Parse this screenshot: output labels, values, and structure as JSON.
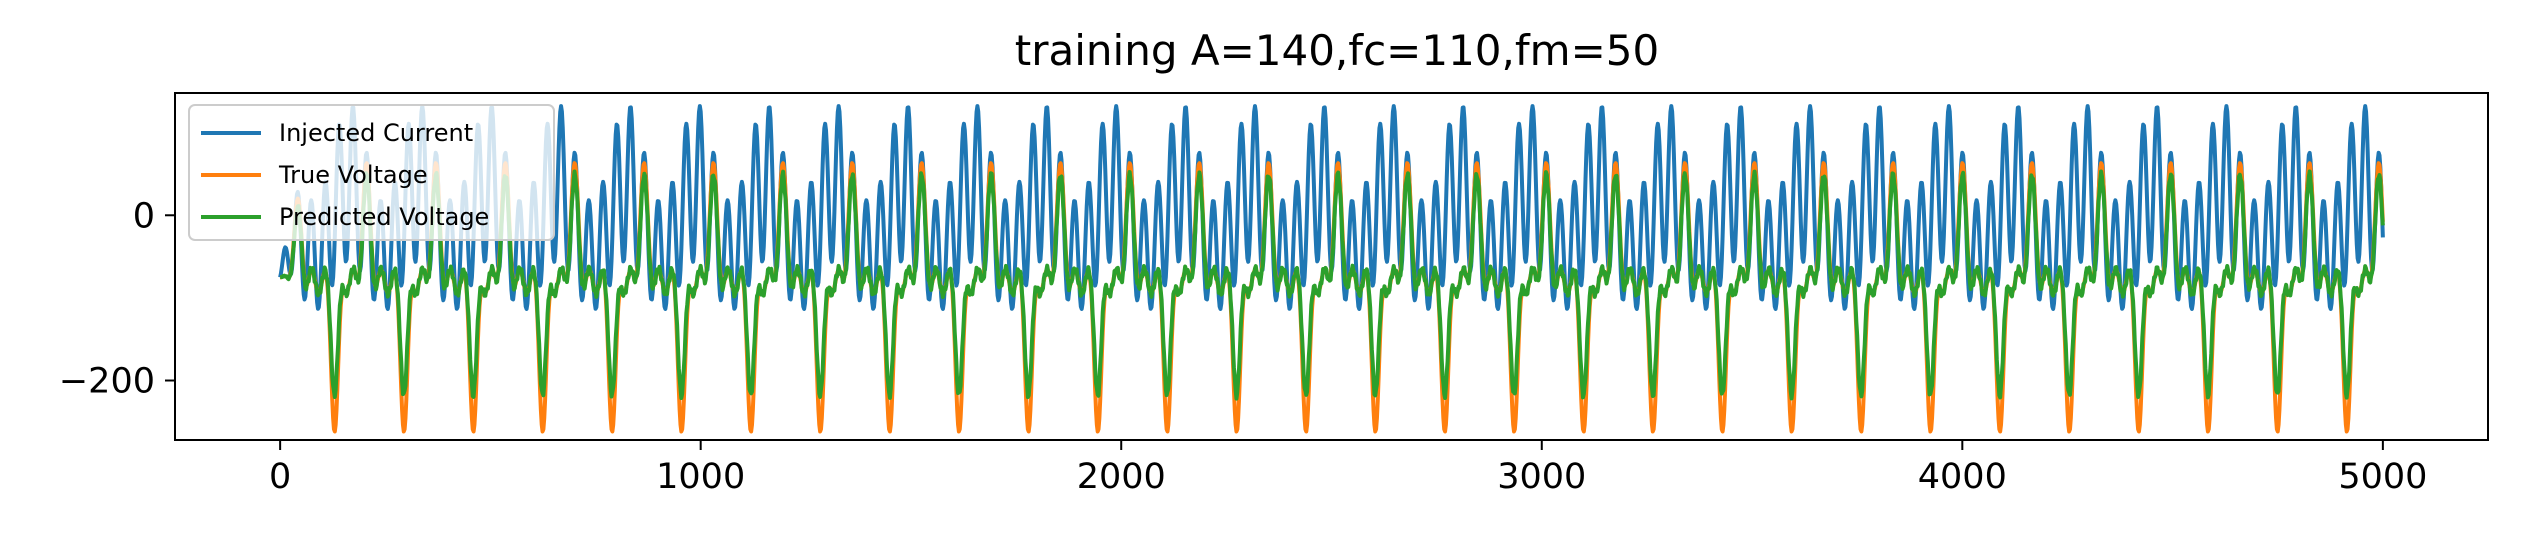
{
  "chart_data": {
    "type": "line",
    "title": "training A=140,fc=110,fm=50",
    "xlabel": "",
    "ylabel": "",
    "xlim": [
      -250,
      5250
    ],
    "ylim": [
      -272,
      148
    ],
    "x_ticks": [
      0,
      1000,
      2000,
      3000,
      4000,
      5000
    ],
    "x_tick_labels": [
      "0",
      "1000",
      "2000",
      "3000",
      "4000",
      "5000"
    ],
    "y_ticks": [
      0,
      -200
    ],
    "y_tick_labels": [
      "0",
      "−200"
    ],
    "grid": false,
    "legend_position": "upper left",
    "x_range": [
      0,
      5000
    ],
    "series": [
      {
        "name": "Injected Current",
        "color": "#1f77b4",
        "description": "carrier oscillation riding on a slower envelope, swinging roughly between -140 and +135",
        "period": 165,
        "carrier_cycles_per_period": 5,
        "offset": -5,
        "min_approx": -140,
        "max_approx": 135
      },
      {
        "name": "True Voltage",
        "color": "#ff7f0e",
        "description": "voltage response, mostly between -100 and -60 with deep troughs near -250 and peaks near 50",
        "offset": -80,
        "min_approx": -250,
        "max_approx": 55
      },
      {
        "name": "Predicted Voltage",
        "color": "#2ca02c",
        "description": "model prediction closely tracking true voltage but with shallower troughs near -200",
        "offset": -80,
        "min_approx": -215,
        "max_approx": 45
      }
    ]
  }
}
